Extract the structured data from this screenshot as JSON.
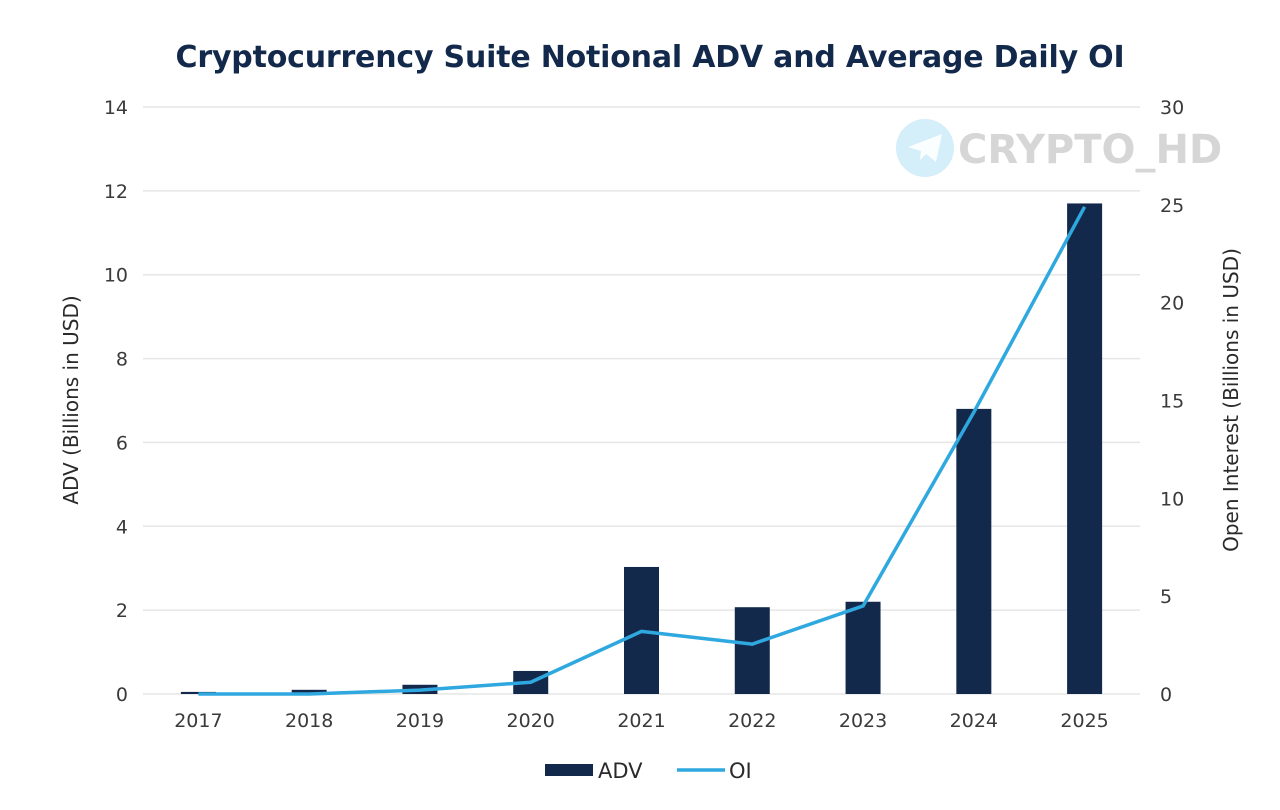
{
  "chart_data": {
    "type": "bar",
    "title": "Cryptocurrency Suite Notional ADV and Average Daily OI",
    "categories": [
      "2017",
      "2018",
      "2019",
      "2020",
      "2021",
      "2022",
      "2023",
      "2024",
      "2025"
    ],
    "series": [
      {
        "name": "ADV",
        "type": "bar",
        "axis": "left",
        "color": "#13294b",
        "values": [
          0.05,
          0.1,
          0.22,
          0.55,
          3.03,
          2.07,
          2.2,
          6.8,
          11.7
        ]
      },
      {
        "name": "OI",
        "type": "line",
        "axis": "right",
        "color": "#2fa8e0",
        "values": [
          0.0,
          0.0,
          0.2,
          0.6,
          3.2,
          2.55,
          4.5,
          14.4,
          24.9
        ]
      }
    ],
    "left_axis": {
      "label": "ADV (Billions in USD)",
      "range": [
        0,
        14
      ],
      "ticks": [
        "0",
        "2",
        "4",
        "6",
        "8",
        "10",
        "12",
        "14"
      ],
      "tick_values": [
        0,
        2,
        4,
        6,
        8,
        10,
        12,
        14
      ]
    },
    "right_axis": {
      "label": "Open Interest (Billions in USD)",
      "range": [
        0,
        30
      ],
      "ticks": [
        "0",
        "5",
        "10",
        "15",
        "20",
        "25",
        "30"
      ],
      "tick_values": [
        0,
        5,
        10,
        15,
        20,
        25,
        30
      ]
    },
    "grid": true,
    "gridline_color": "#e6e6e6",
    "legend": {
      "position": "bottom-center",
      "entries": [
        {
          "label": "ADV",
          "kind": "bar",
          "color": "#13294b"
        },
        {
          "label": "OI",
          "kind": "line",
          "color": "#2fa8e0"
        }
      ]
    }
  },
  "watermark": {
    "text": "CRYPTO_HD",
    "icon": "telegram-icon",
    "icon_color": "#d4eefa",
    "text_color": "#d6d6d6"
  }
}
